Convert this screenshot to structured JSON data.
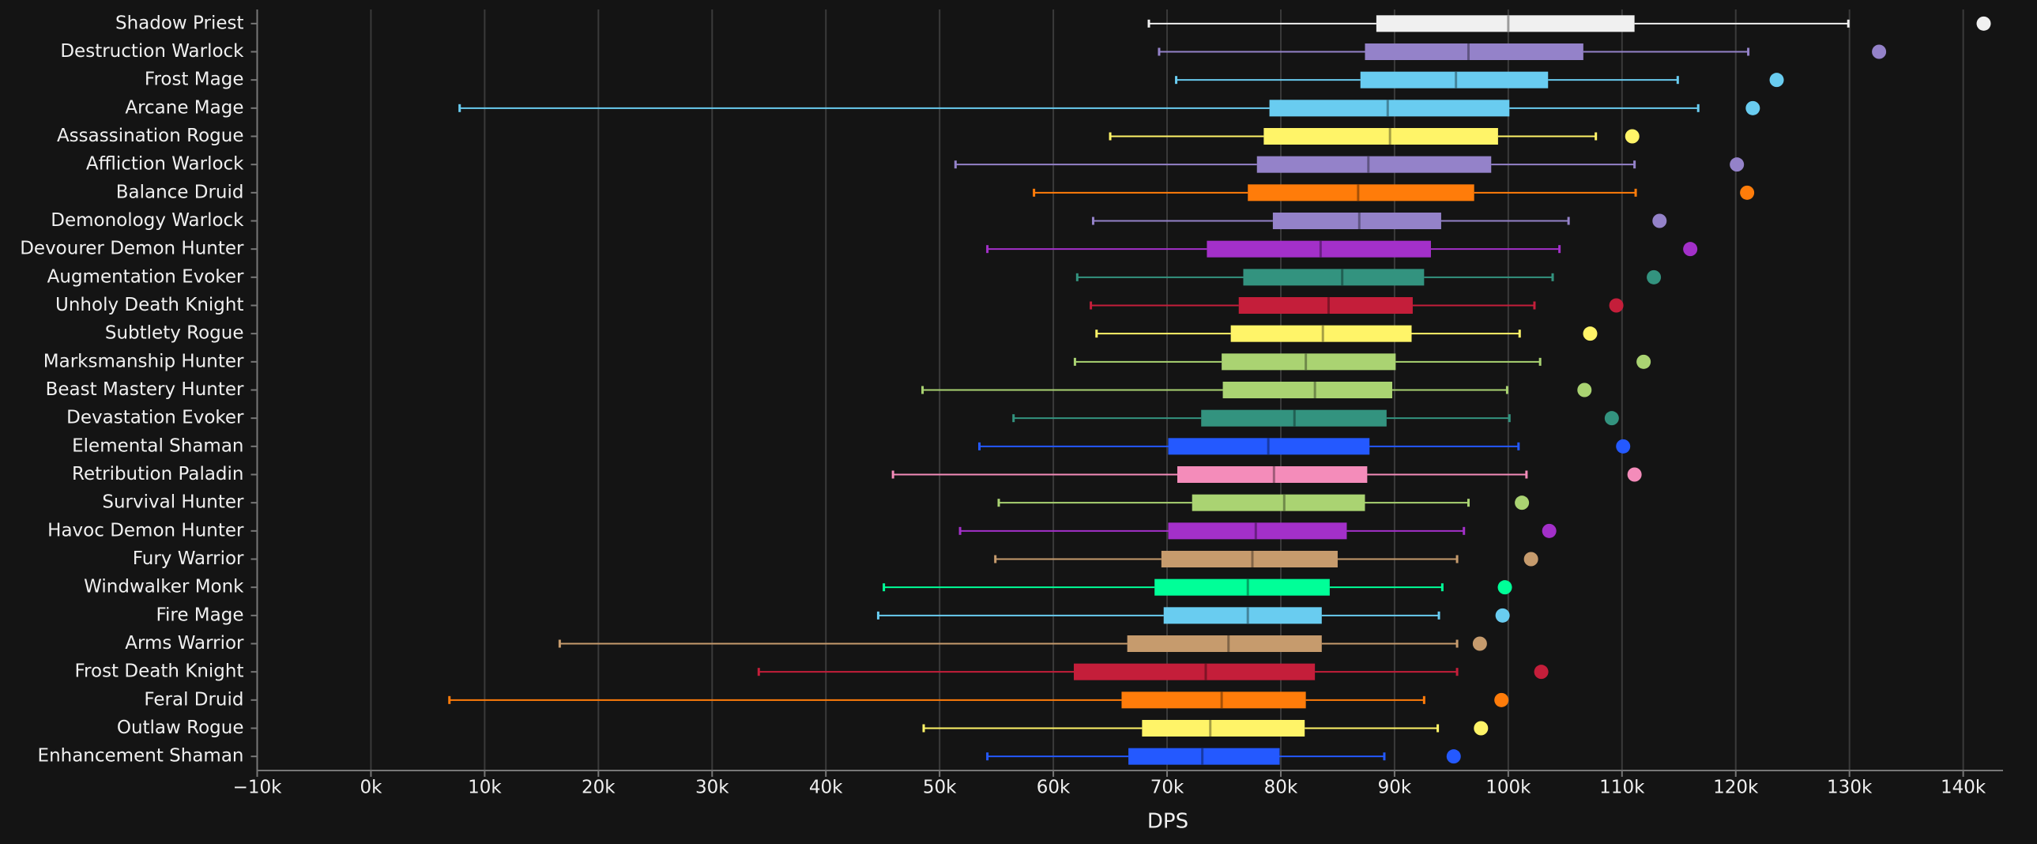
{
  "chart_data": {
    "type": "box",
    "x_label": "DPS",
    "xlim": [
      -10000,
      143500
    ],
    "xticks": [
      {
        "value": -10000,
        "label": "−10k"
      },
      {
        "value": 0,
        "label": "0k"
      },
      {
        "value": 10000,
        "label": "10k"
      },
      {
        "value": 20000,
        "label": "20k"
      },
      {
        "value": 30000,
        "label": "30k"
      },
      {
        "value": 40000,
        "label": "40k"
      },
      {
        "value": 50000,
        "label": "50k"
      },
      {
        "value": 60000,
        "label": "60k"
      },
      {
        "value": 70000,
        "label": "70k"
      },
      {
        "value": 80000,
        "label": "80k"
      },
      {
        "value": 90000,
        "label": "90k"
      },
      {
        "value": 100000,
        "label": "100k"
      },
      {
        "value": 110000,
        "label": "110k"
      },
      {
        "value": 120000,
        "label": "120k"
      },
      {
        "value": 130000,
        "label": "130k"
      },
      {
        "value": 140000,
        "label": "140k"
      }
    ],
    "grid": true,
    "boxes": [
      {
        "name": "Shadow Priest",
        "color": "#f0f0f0",
        "min": 68400,
        "q1": 88400,
        "median": 100000,
        "q3": 111100,
        "max": 129900,
        "point": 141800
      },
      {
        "name": "Destruction Warlock",
        "color": "#9482c9",
        "min": 69300,
        "q1": 87400,
        "median": 96500,
        "q3": 106600,
        "max": 121100,
        "point": 132600
      },
      {
        "name": "Frost Mage",
        "color": "#69ccf0",
        "min": 70800,
        "q1": 87000,
        "median": 95400,
        "q3": 103500,
        "max": 114900,
        "point": 123600
      },
      {
        "name": "Arcane Mage",
        "color": "#69ccf0",
        "min": 7800,
        "q1": 79000,
        "median": 89400,
        "q3": 100100,
        "max": 116700,
        "point": 121500
      },
      {
        "name": "Assassination Rogue",
        "color": "#fff468",
        "min": 65000,
        "q1": 78500,
        "median": 89600,
        "q3": 99100,
        "max": 107700,
        "point": 110900
      },
      {
        "name": "Affliction Warlock",
        "color": "#9482c9",
        "min": 51400,
        "q1": 77900,
        "median": 87700,
        "q3": 98500,
        "max": 111100,
        "point": 120100
      },
      {
        "name": "Balance Druid",
        "color": "#ff7c0a",
        "min": 58300,
        "q1": 77100,
        "median": 86800,
        "q3": 97000,
        "max": 111200,
        "point": 121000
      },
      {
        "name": "Demonology Warlock",
        "color": "#9482c9",
        "min": 63500,
        "q1": 79300,
        "median": 86900,
        "q3": 94100,
        "max": 105300,
        "point": 113300
      },
      {
        "name": "Devourer Demon Hunter",
        "color": "#a330c9",
        "min": 54200,
        "q1": 73500,
        "median": 83500,
        "q3": 93200,
        "max": 104500,
        "point": 116000
      },
      {
        "name": "Augmentation Evoker",
        "color": "#33937f",
        "min": 62100,
        "q1": 76700,
        "median": 85400,
        "q3": 92600,
        "max": 103900,
        "point": 112800
      },
      {
        "name": "Unholy Death Knight",
        "color": "#c41e3a",
        "min": 63300,
        "q1": 76300,
        "median": 84200,
        "q3": 91600,
        "max": 102300,
        "point": 109500
      },
      {
        "name": "Subtlety Rogue",
        "color": "#fff468",
        "min": 63800,
        "q1": 75600,
        "median": 83700,
        "q3": 91500,
        "max": 101000,
        "point": 107200
      },
      {
        "name": "Marksmanship Hunter",
        "color": "#aad372",
        "min": 61900,
        "q1": 74800,
        "median": 82200,
        "q3": 90100,
        "max": 102800,
        "point": 111900
      },
      {
        "name": "Beast Mastery Hunter",
        "color": "#aad372",
        "min": 48500,
        "q1": 74900,
        "median": 83000,
        "q3": 89800,
        "max": 99900,
        "point": 106700
      },
      {
        "name": "Devastation Evoker",
        "color": "#33937f",
        "min": 56500,
        "q1": 73000,
        "median": 81200,
        "q3": 89300,
        "max": 100100,
        "point": 109100
      },
      {
        "name": "Elemental Shaman",
        "color": "#2459ff",
        "min": 53500,
        "q1": 70100,
        "median": 78900,
        "q3": 87800,
        "max": 100900,
        "point": 110100
      },
      {
        "name": "Retribution Paladin",
        "color": "#f48cba",
        "min": 45900,
        "q1": 70900,
        "median": 79400,
        "q3": 87600,
        "max": 101600,
        "point": 111100
      },
      {
        "name": "Survival Hunter",
        "color": "#aad372",
        "min": 55200,
        "q1": 72200,
        "median": 80300,
        "q3": 87400,
        "max": 96500,
        "point": 101200
      },
      {
        "name": "Havoc Demon Hunter",
        "color": "#a330c9",
        "min": 51800,
        "q1": 70100,
        "median": 77800,
        "q3": 85800,
        "max": 96100,
        "point": 103600
      },
      {
        "name": "Fury Warrior",
        "color": "#c69b6d",
        "min": 54900,
        "q1": 69500,
        "median": 77500,
        "q3": 85000,
        "max": 95500,
        "point": 102000
      },
      {
        "name": "Windwalker Monk",
        "color": "#00ff98",
        "min": 45100,
        "q1": 68900,
        "median": 77100,
        "q3": 84300,
        "max": 94200,
        "point": 99700
      },
      {
        "name": "Fire Mage",
        "color": "#69ccf0",
        "min": 44600,
        "q1": 69700,
        "median": 77100,
        "q3": 83600,
        "max": 93900,
        "point": 99500
      },
      {
        "name": "Arms Warrior",
        "color": "#c69b6d",
        "min": 16600,
        "q1": 66500,
        "median": 75400,
        "q3": 83600,
        "max": 95500,
        "point": 97500
      },
      {
        "name": "Frost Death Knight",
        "color": "#c41e3a",
        "min": 34100,
        "q1": 61800,
        "median": 73400,
        "q3": 83000,
        "max": 95500,
        "point": 102900
      },
      {
        "name": "Feral Druid",
        "color": "#ff7c0a",
        "min": 6900,
        "q1": 66000,
        "median": 74800,
        "q3": 82200,
        "max": 92600,
        "point": 99400
      },
      {
        "name": "Outlaw Rogue",
        "color": "#fff468",
        "min": 48600,
        "q1": 67800,
        "median": 73800,
        "q3": 82100,
        "max": 93800,
        "point": 97600
      },
      {
        "name": "Enhancement Shaman",
        "color": "#2459ff",
        "min": 54200,
        "q1": 66600,
        "median": 73100,
        "q3": 79900,
        "max": 89100,
        "point": 95200
      }
    ]
  }
}
